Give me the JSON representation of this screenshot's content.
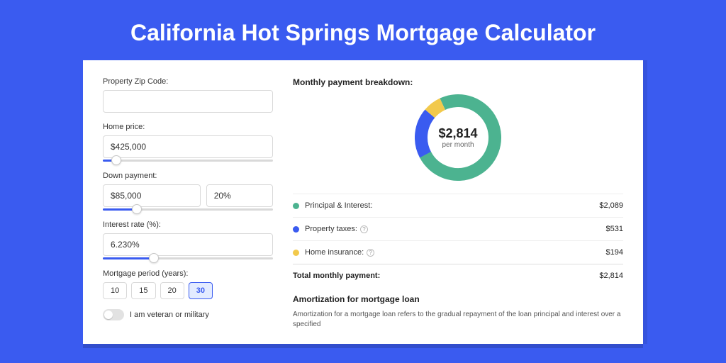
{
  "page": {
    "title": "California Hot Springs Mortgage Calculator",
    "background_color": "#3a5bf0",
    "card_background": "#ffffff"
  },
  "form": {
    "zip": {
      "label": "Property Zip Code:",
      "value": ""
    },
    "home_price": {
      "label": "Home price:",
      "value": "$425,000",
      "slider_pct": 8
    },
    "down_payment": {
      "label": "Down payment:",
      "amount": "$85,000",
      "percent": "20%",
      "slider_pct": 20
    },
    "interest_rate": {
      "label": "Interest rate (%):",
      "value": "6.230%",
      "slider_pct": 30
    },
    "mortgage_period": {
      "label": "Mortgage period (years):",
      "options": [
        "10",
        "15",
        "20",
        "30"
      ],
      "active": "30"
    },
    "veteran": {
      "label": "I am veteran or military",
      "checked": false
    }
  },
  "breakdown": {
    "title": "Monthly payment breakdown:",
    "total_amount": "$2,814",
    "total_sub": "per month",
    "series": [
      {
        "key": "principal_interest",
        "label": "Principal & Interest:",
        "value": "$2,089",
        "color": "#4cb390",
        "pct": 74.2,
        "has_info": false
      },
      {
        "key": "property_taxes",
        "label": "Property taxes:",
        "value": "$531",
        "color": "#3a5bf0",
        "pct": 18.9,
        "has_info": true
      },
      {
        "key": "home_insurance",
        "label": "Home insurance:",
        "value": "$194",
        "color": "#f2c94c",
        "pct": 6.9,
        "has_info": true
      }
    ],
    "total_row": {
      "label": "Total monthly payment:",
      "value": "$2,814"
    },
    "chart": {
      "type": "donut",
      "thickness": 18,
      "radius": 61,
      "background": "#ffffff"
    }
  },
  "amortization": {
    "title": "Amortization for mortgage loan",
    "text": "Amortization for a mortgage loan refers to the gradual repayment of the loan principal and interest over a specified"
  }
}
